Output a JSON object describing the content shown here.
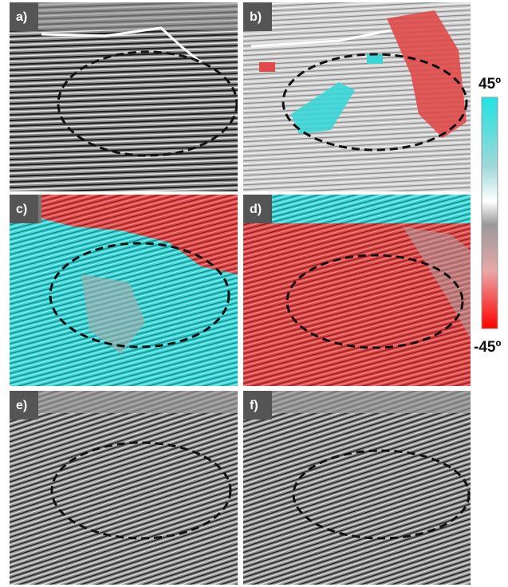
{
  "panels": [
    {
      "label": "a)"
    },
    {
      "label": "b)"
    },
    {
      "label": "c)"
    },
    {
      "label": "d)"
    },
    {
      "label": "e)"
    },
    {
      "label": "f)"
    }
  ],
  "colorbar": {
    "max_label": "45º",
    "min_label": "-45º"
  }
}
